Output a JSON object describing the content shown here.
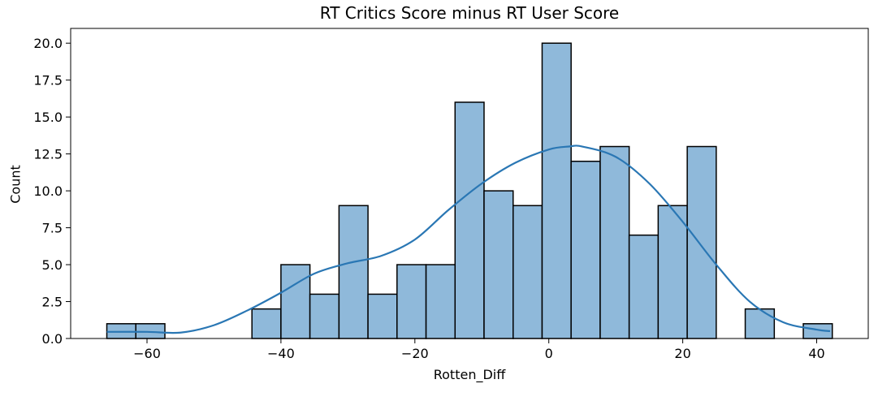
{
  "chart_data": {
    "type": "bar",
    "title": "RT Critics Score minus RT User Score",
    "xlabel": "Rotten_Diff",
    "ylabel": "Count",
    "bin_edges": [
      -66,
      -61.67,
      -57.33,
      -53,
      -48.67,
      -44.33,
      -40,
      -35.67,
      -31.33,
      -27,
      -22.67,
      -18.33,
      -14,
      -9.67,
      -5.33,
      -1,
      3.33,
      7.67,
      12,
      16.33,
      20.67,
      25,
      29.33,
      33.67,
      38,
      42.33
    ],
    "counts": [
      1,
      1,
      0,
      0,
      0,
      2,
      5,
      3,
      9,
      3,
      5,
      5,
      16,
      10,
      9,
      20,
      12,
      13,
      7,
      9,
      13,
      0,
      2,
      0,
      1
    ],
    "kde": {
      "x": [
        -66,
        -60,
        -55,
        -50,
        -45,
        -40,
        -35,
        -30,
        -25,
        -20,
        -15,
        -10,
        -5,
        0,
        3,
        5,
        10,
        15,
        20,
        25,
        30,
        35,
        40,
        42
      ],
      "y": [
        0.45,
        0.45,
        0.4,
        0.9,
        1.9,
        3.1,
        4.4,
        5.1,
        5.6,
        6.7,
        8.7,
        10.5,
        11.9,
        12.8,
        13.0,
        13.0,
        12.3,
        10.5,
        7.9,
        5.0,
        2.5,
        1.1,
        0.6,
        0.5
      ]
    },
    "xlim": [
      -71.4,
      47.7
    ],
    "ylim": [
      0,
      21
    ],
    "xticks": [
      -60,
      -40,
      -20,
      0,
      20,
      40
    ],
    "yticks": [
      0.0,
      2.5,
      5.0,
      7.5,
      10.0,
      12.5,
      15.0,
      17.5,
      20.0
    ],
    "grid": false,
    "colors": {
      "bar_fill": "#8fb9da",
      "bar_edge": "#000000",
      "kde_line": "#2a77b4"
    }
  }
}
